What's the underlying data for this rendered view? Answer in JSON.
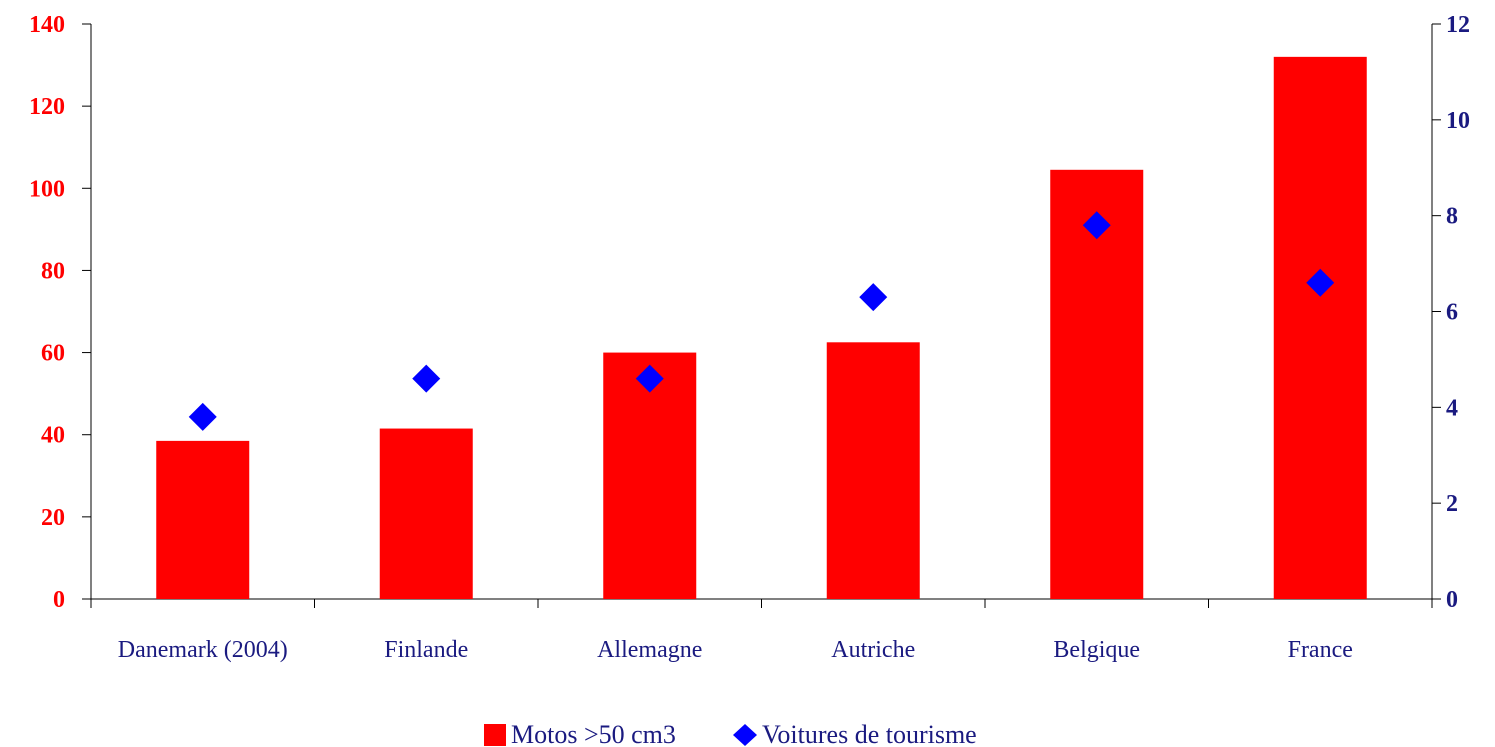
{
  "chart_data": {
    "type": "bar",
    "categories": [
      "Danemark (2004)",
      "Finlande",
      "Allemagne",
      "Autriche",
      "Belgique",
      "France"
    ],
    "series": [
      {
        "name": "Motos >50 cm3",
        "type": "bar",
        "axis": "left",
        "color": "#ff0000",
        "values": [
          38.5,
          41.5,
          60,
          62.5,
          104.5,
          132
        ]
      },
      {
        "name": "Voitures de tourisme",
        "type": "scatter",
        "axis": "right",
        "color": "#0000ff",
        "marker": "diamond",
        "values": [
          3.8,
          4.6,
          4.6,
          6.3,
          7.8,
          6.6
        ]
      }
    ],
    "y_left": {
      "min": 0,
      "max": 140,
      "step": 20,
      "color": "#ff0000"
    },
    "y_right": {
      "min": 0,
      "max": 12,
      "step": 2,
      "color": "#1a1a80"
    },
    "legend": {
      "position": "bottom"
    },
    "grid": false
  }
}
